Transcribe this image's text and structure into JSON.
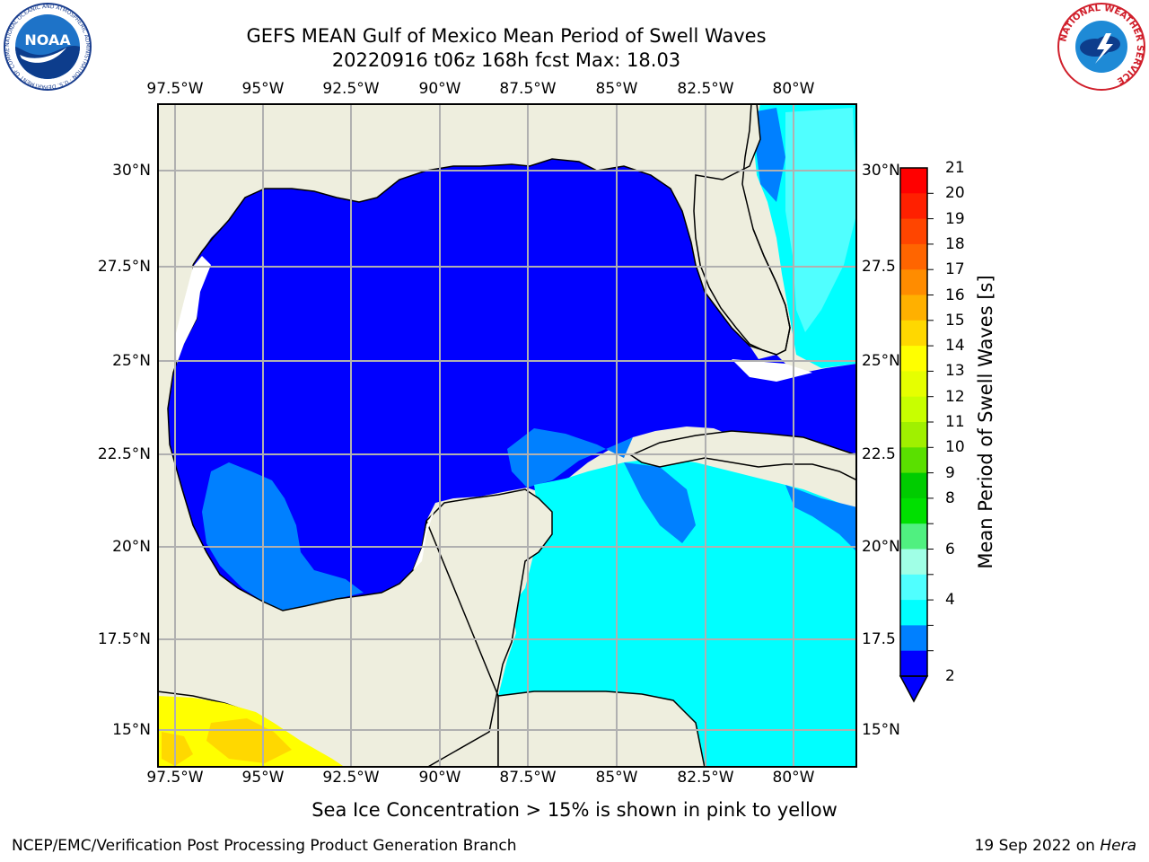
{
  "header": {
    "title_line1": "GEFS MEAN Gulf of Mexico Mean Period of Swell Waves",
    "title_line2": "20220916 t06z 168h fcst   Max: 18.03"
  },
  "axes": {
    "lon_labels": [
      "97.5°W",
      "95°W",
      "92.5°W",
      "90°W",
      "87.5°W",
      "85°W",
      "82.5°W",
      "80°W"
    ],
    "lat_labels": [
      "30°N",
      "27.5°N",
      "25°N",
      "22.5°N",
      "20°N",
      "17.5°N",
      "15°N"
    ],
    "lat_labels_right": [
      "30°N",
      "27.5",
      "25°N",
      "22.5",
      "20°N",
      "17.5",
      "15°N"
    ]
  },
  "colorbar": {
    "title": "Mean Period of Swell Waves [s]",
    "ticks": [
      "21",
      "20",
      "19",
      "18",
      "17",
      "16",
      "15",
      "14",
      "13",
      "12",
      "11",
      "10",
      "9",
      "8",
      "6",
      "4",
      "2"
    ],
    "colors": [
      "#ff0000",
      "#ff2000",
      "#ff4500",
      "#ff6500",
      "#ff8c00",
      "#ffb000",
      "#ffd800",
      "#ffff00",
      "#e6ff00",
      "#c8ff00",
      "#a0f000",
      "#5ae000",
      "#00cc00",
      "#00e000",
      "#50f080",
      "#a0ffe6",
      "#50ffff",
      "#00ffff",
      "#0080ff",
      "#0000ff"
    ]
  },
  "map": {
    "land_color": "#eeeede",
    "colors": {
      "deep_blue": "#0000ff",
      "mid_blue": "#0080ff",
      "cyan": "#00ffff",
      "light_cyan": "#50ffff",
      "yellow": "#ffff00",
      "gold": "#ffd800"
    }
  },
  "notes": {
    "ice": "Sea Ice Concentration > 15% is shown in pink to yellow"
  },
  "footer": {
    "left": "NCEP/EMC/Verification Post Processing Product Generation Branch",
    "date": "19 Sep 2022 on ",
    "host": "Hera"
  },
  "logos": {
    "noaa_text": "NOAA",
    "noaa_ring": "NATIONAL OCEANIC AND ATMOSPHERIC ADMINISTRATION · U.S. DEPARTMENT OF COMMERCE",
    "nws_ring": "NATIONAL WEATHER SERVICE"
  }
}
